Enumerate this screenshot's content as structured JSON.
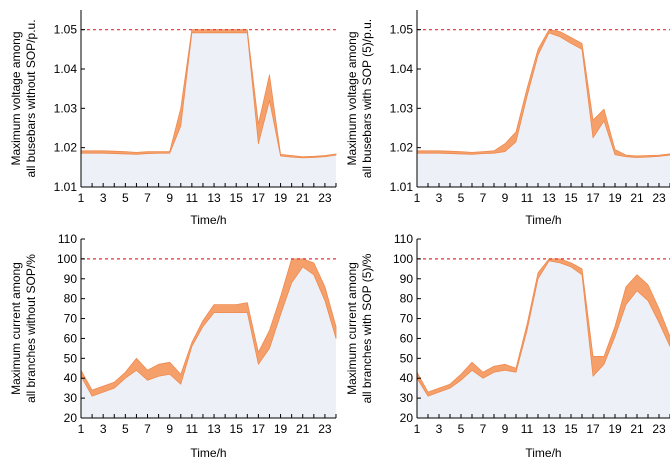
{
  "colors": {
    "band": "#f5a06b",
    "band_edge": "#ee8a4f",
    "fill": "#edf1f7",
    "limit": "#e8303a",
    "axis": "#000000"
  },
  "chart_data": [
    {
      "type": "area",
      "xlabel": "Time/h",
      "ylabel": [
        "Maximum voltage among",
        "all busebars without SOP/p.u."
      ],
      "xlim": [
        1,
        24
      ],
      "ylim": [
        1.01,
        1.055
      ],
      "xticks": [
        1,
        3,
        5,
        7,
        9,
        11,
        13,
        15,
        17,
        19,
        21,
        23
      ],
      "yticks": [
        1.01,
        1.02,
        1.03,
        1.04,
        1.05
      ],
      "ytick_labels": [
        "1.01",
        "1.02",
        "1.03",
        "1.04",
        "1.05"
      ],
      "limit": 1.05,
      "x": [
        1,
        2,
        3,
        4,
        5,
        6,
        7,
        8,
        9,
        10,
        11,
        12,
        13,
        14,
        15,
        16,
        17,
        18,
        19,
        20,
        21,
        22,
        23,
        24
      ],
      "series": [
        {
          "values_upper": [
            1.0192,
            1.0192,
            1.0192,
            1.0191,
            1.019,
            1.0188,
            1.019,
            1.019,
            1.019,
            1.03,
            1.05,
            1.05,
            1.05,
            1.05,
            1.05,
            1.05,
            1.026,
            1.0385,
            1.0183,
            1.018,
            1.0177,
            1.0178,
            1.018,
            1.0184
          ]
        },
        {
          "values_lower": [
            1.0186,
            1.0186,
            1.0186,
            1.0185,
            1.0184,
            1.0183,
            1.0185,
            1.0186,
            1.0186,
            1.0255,
            1.0492,
            1.0492,
            1.0492,
            1.0492,
            1.0492,
            1.0492,
            1.021,
            1.032,
            1.0179,
            1.0176,
            1.0174,
            1.0175,
            1.0177,
            1.0181
          ]
        }
      ]
    },
    {
      "type": "area",
      "xlabel": "Time/h",
      "ylabel": [
        "Maximum voltage among",
        "all busebars with SOP (5)/p.u."
      ],
      "xlim": [
        1,
        24
      ],
      "ylim": [
        1.01,
        1.055
      ],
      "xticks": [
        1,
        3,
        5,
        7,
        9,
        11,
        13,
        15,
        17,
        19,
        21,
        23
      ],
      "yticks": [
        1.01,
        1.02,
        1.03,
        1.04,
        1.05
      ],
      "ytick_labels": [
        "1.01",
        "1.02",
        "1.03",
        "1.04",
        "1.05"
      ],
      "limit": 1.05,
      "x": [
        1,
        2,
        3,
        4,
        5,
        6,
        7,
        8,
        9,
        10,
        11,
        12,
        13,
        14,
        15,
        16,
        17,
        18,
        19,
        20,
        21,
        22,
        23,
        24
      ],
      "series": [
        {
          "values_upper": [
            1.0192,
            1.0192,
            1.0192,
            1.0191,
            1.019,
            1.0188,
            1.019,
            1.0192,
            1.021,
            1.024,
            1.035,
            1.045,
            1.05,
            1.0495,
            1.048,
            1.0465,
            1.027,
            1.0298,
            1.0195,
            1.0181,
            1.0179,
            1.018,
            1.0181,
            1.0184
          ]
        },
        {
          "values_lower": [
            1.0186,
            1.0186,
            1.0186,
            1.0185,
            1.0184,
            1.0183,
            1.0185,
            1.0186,
            1.019,
            1.0215,
            1.033,
            1.0435,
            1.0492,
            1.0482,
            1.0465,
            1.045,
            1.0225,
            1.0268,
            1.0182,
            1.0177,
            1.0175,
            1.0176,
            1.0178,
            1.0181
          ]
        }
      ]
    },
    {
      "type": "area",
      "xlabel": "Time/h",
      "ylabel": [
        "Maximum current among",
        "all branches without SOP/%"
      ],
      "xlim": [
        1,
        24
      ],
      "ylim": [
        20,
        110
      ],
      "xticks": [
        1,
        3,
        5,
        7,
        9,
        11,
        13,
        15,
        17,
        19,
        21,
        23
      ],
      "yticks": [
        20,
        30,
        40,
        50,
        60,
        70,
        80,
        90,
        100,
        110
      ],
      "ytick_labels": [
        "20",
        "30",
        "40",
        "50",
        "60",
        "70",
        "80",
        "90",
        "100",
        "110"
      ],
      "limit": 100,
      "x": [
        1,
        2,
        3,
        4,
        5,
        6,
        7,
        8,
        9,
        10,
        11,
        12,
        13,
        14,
        15,
        16,
        17,
        18,
        19,
        20,
        21,
        22,
        23,
        24
      ],
      "series": [
        {
          "values_upper": [
            44,
            34,
            36,
            38,
            43,
            50,
            44,
            47,
            48,
            42,
            58,
            69,
            77,
            77,
            77,
            78,
            53,
            64,
            81,
            100,
            100,
            98,
            86,
            66
          ]
        },
        {
          "values_lower": [
            41,
            31,
            33,
            35,
            40,
            44,
            39,
            41,
            42,
            37,
            56,
            66,
            73,
            73,
            73,
            73,
            47,
            55,
            72,
            88,
            96,
            92,
            79,
            60
          ]
        }
      ]
    },
    {
      "type": "area",
      "xlabel": "Time/h",
      "ylabel": [
        "Maximum current among",
        "all branches with SOP (5)/%"
      ],
      "xlim": [
        1,
        24
      ],
      "ylim": [
        20,
        110
      ],
      "xticks": [
        1,
        3,
        5,
        7,
        9,
        11,
        13,
        15,
        17,
        19,
        21,
        23
      ],
      "yticks": [
        20,
        30,
        40,
        50,
        60,
        70,
        80,
        90,
        100,
        110
      ],
      "ytick_labels": [
        "20",
        "30",
        "40",
        "50",
        "60",
        "70",
        "80",
        "90",
        "100",
        "110"
      ],
      "limit": 100,
      "x": [
        1,
        2,
        3,
        4,
        5,
        6,
        7,
        8,
        9,
        10,
        11,
        12,
        13,
        14,
        15,
        16,
        17,
        18,
        19,
        20,
        21,
        22,
        23,
        24
      ],
      "series": [
        {
          "values_upper": [
            43,
            33,
            35,
            37,
            42,
            48,
            43,
            46,
            47,
            45,
            67,
            93,
            100,
            100,
            98,
            95,
            51,
            51,
            66,
            86,
            92,
            87,
            75,
            61
          ]
        },
        {
          "values_lower": [
            40,
            31,
            33,
            35,
            39,
            44,
            40,
            43,
            44,
            43,
            64,
            90,
            99,
            98,
            96,
            92,
            41,
            47,
            61,
            77,
            84,
            79,
            68,
            56
          ]
        }
      ]
    }
  ]
}
